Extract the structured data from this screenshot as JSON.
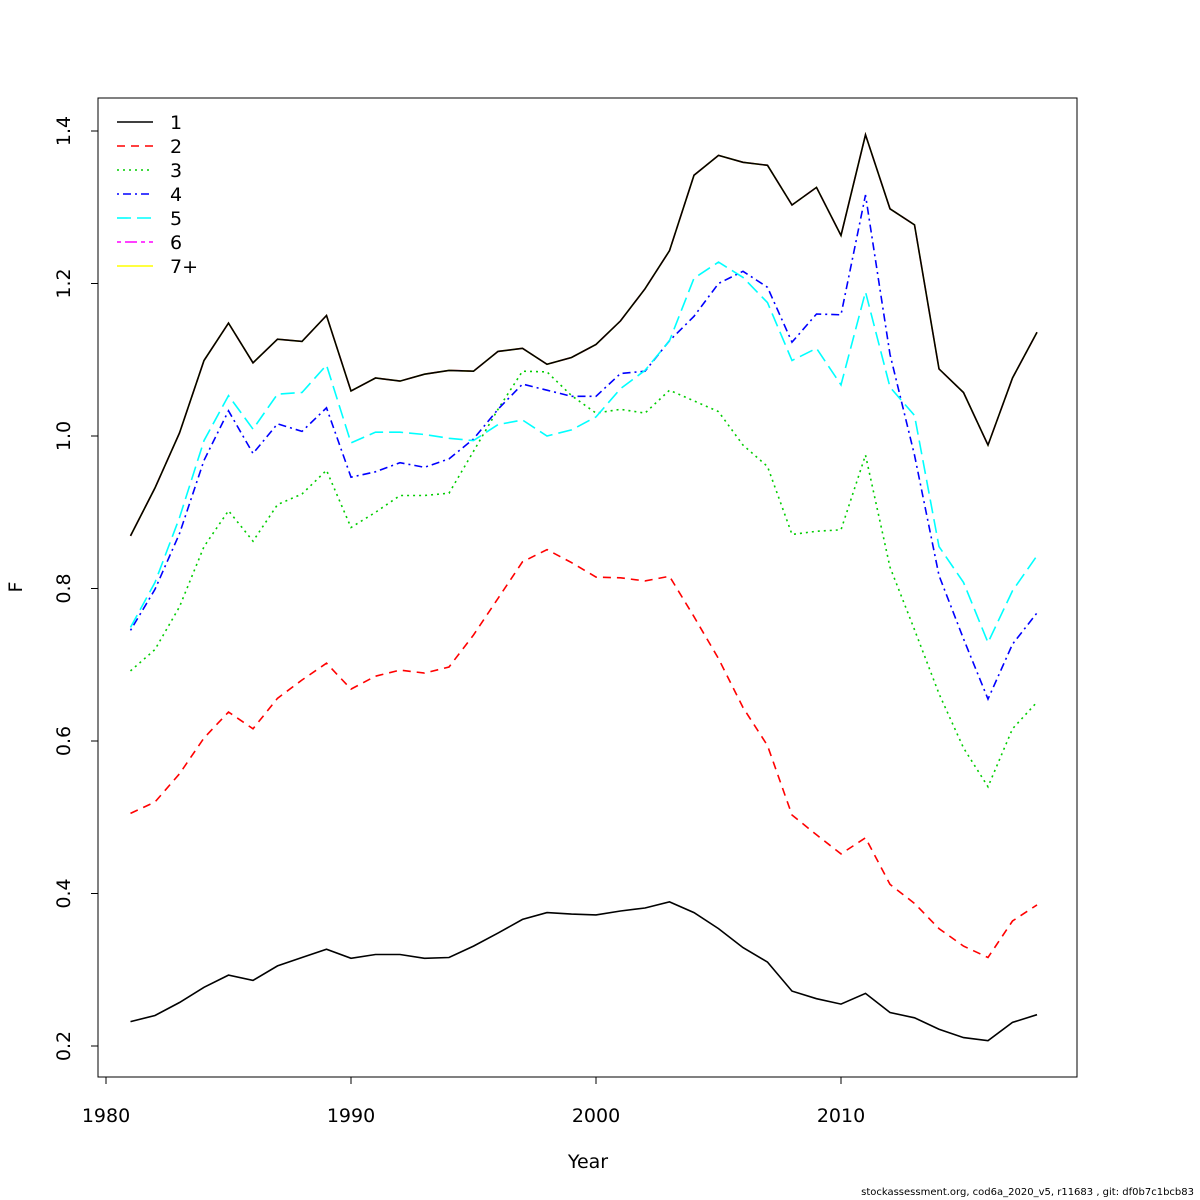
{
  "chart_data": {
    "type": "line",
    "title": "",
    "xlabel": "Year",
    "ylabel": "F",
    "xlim": [
      1980,
      2019
    ],
    "ylim": [
      0.18,
      1.42
    ],
    "x_ticks": [
      1980,
      1990,
      2000,
      2010
    ],
    "y_ticks": [
      0.2,
      0.4,
      0.6,
      0.8,
      1.0,
      1.2,
      1.4
    ],
    "y_tick_labels": [
      "0.2",
      "0.4",
      "0.6",
      "0.8",
      "1.0",
      "1.2",
      "1.4"
    ],
    "legend_position": "top-left",
    "grid": false,
    "x": [
      1981,
      1982,
      1983,
      1984,
      1985,
      1986,
      1987,
      1988,
      1989,
      1990,
      1991,
      1992,
      1993,
      1994,
      1995,
      1996,
      1997,
      1998,
      1999,
      2000,
      2001,
      2002,
      2003,
      2004,
      2005,
      2006,
      2007,
      2008,
      2009,
      2010,
      2011,
      2012,
      2013,
      2014,
      2015,
      2016,
      2017,
      2018
    ],
    "series": [
      {
        "name": "1",
        "color": "#000000",
        "dash": "solid",
        "values": [
          0.232,
          0.24,
          0.257,
          0.277,
          0.293,
          0.286,
          0.305,
          0.316,
          0.327,
          0.315,
          0.32,
          0.32,
          0.315,
          0.316,
          0.331,
          0.348,
          0.366,
          0.375,
          0.373,
          0.372,
          0.377,
          0.381,
          0.389,
          0.375,
          0.354,
          0.329,
          0.31,
          0.272,
          0.262,
          0.255,
          0.269,
          0.244,
          0.237,
          0.222,
          0.211,
          0.207,
          0.231,
          0.241
        ]
      },
      {
        "name": "2",
        "color": "#ff0000",
        "dash": "dashed",
        "values": [
          0.505,
          0.52,
          0.557,
          0.604,
          0.638,
          0.616,
          0.656,
          0.68,
          0.702,
          0.668,
          0.685,
          0.693,
          0.689,
          0.697,
          0.739,
          0.787,
          0.835,
          0.851,
          0.834,
          0.815,
          0.814,
          0.81,
          0.816,
          0.763,
          0.708,
          0.644,
          0.594,
          0.503,
          0.477,
          0.452,
          0.473,
          0.412,
          0.387,
          0.354,
          0.331,
          0.316,
          0.364,
          0.385
        ]
      },
      {
        "name": "3",
        "color": "#00cd00",
        "dash": "dotted",
        "values": [
          0.692,
          0.72,
          0.776,
          0.855,
          0.902,
          0.862,
          0.91,
          0.924,
          0.955,
          0.88,
          0.9,
          0.922,
          0.922,
          0.925,
          0.98,
          1.035,
          1.085,
          1.084,
          1.053,
          1.03,
          1.035,
          1.03,
          1.06,
          1.046,
          1.032,
          0.988,
          0.96,
          0.871,
          0.875,
          0.877,
          0.975,
          0.828,
          0.746,
          0.662,
          0.591,
          0.54,
          0.616,
          0.651
        ]
      },
      {
        "name": "4",
        "color": "#0000ff",
        "dash": "dotdash",
        "values": [
          0.745,
          0.799,
          0.872,
          0.968,
          1.033,
          0.977,
          1.016,
          1.006,
          1.037,
          0.946,
          0.953,
          0.965,
          0.959,
          0.97,
          0.996,
          1.035,
          1.068,
          1.06,
          1.052,
          1.052,
          1.082,
          1.085,
          1.125,
          1.157,
          1.2,
          1.216,
          1.195,
          1.123,
          1.16,
          1.159,
          1.316,
          1.107,
          0.975,
          0.817,
          0.734,
          0.655,
          0.727,
          0.768
        ]
      },
      {
        "name": "5",
        "color": "#00ffff",
        "dash": "longdash",
        "values": [
          0.749,
          0.808,
          0.893,
          0.994,
          1.053,
          1.009,
          1.055,
          1.057,
          1.093,
          0.991,
          1.005,
          1.005,
          1.002,
          0.997,
          0.994,
          1.015,
          1.021,
          1.0,
          1.008,
          1.025,
          1.062,
          1.086,
          1.125,
          1.207,
          1.228,
          1.208,
          1.175,
          1.099,
          1.115,
          1.067,
          1.189,
          1.064,
          1.027,
          0.855,
          0.808,
          0.729,
          0.797,
          0.843
        ]
      },
      {
        "name": "6",
        "color": "#ff00ff",
        "dash": "twodash",
        "values": [
          0.869,
          0.932,
          1.004,
          1.099,
          1.148,
          1.096,
          1.127,
          1.124,
          1.158,
          1.059,
          1.076,
          1.072,
          1.081,
          1.086,
          1.085,
          1.111,
          1.115,
          1.094,
          1.103,
          1.12,
          1.151,
          1.193,
          1.243,
          1.342,
          1.368,
          1.359,
          1.355,
          1.303,
          1.326,
          1.263,
          1.395,
          1.298,
          1.277,
          1.088,
          1.057,
          0.988,
          1.076,
          1.136
        ]
      },
      {
        "name": "7+",
        "color": "#ffff00",
        "dash": "solid",
        "values": [
          0.869,
          0.932,
          1.004,
          1.099,
          1.148,
          1.096,
          1.127,
          1.124,
          1.158,
          1.059,
          1.076,
          1.072,
          1.081,
          1.086,
          1.085,
          1.111,
          1.115,
          1.094,
          1.103,
          1.12,
          1.151,
          1.193,
          1.243,
          1.342,
          1.368,
          1.359,
          1.355,
          1.303,
          1.326,
          1.263,
          1.395,
          1.298,
          1.277,
          1.088,
          1.057,
          0.988,
          1.076,
          1.136
        ]
      }
    ],
    "overlay": {
      "name": "1",
      "color": "#000000",
      "dash": "solid",
      "values": [
        0.869,
        0.932,
        1.004,
        1.099,
        1.148,
        1.096,
        1.127,
        1.124,
        1.158,
        1.059,
        1.076,
        1.072,
        1.081,
        1.086,
        1.085,
        1.111,
        1.115,
        1.094,
        1.103,
        1.12,
        1.151,
        1.193,
        1.243,
        1.342,
        1.368,
        1.359,
        1.355,
        1.303,
        1.326,
        1.263,
        1.395,
        1.298,
        1.277,
        1.088,
        1.057,
        0.988,
        1.076,
        1.136
      ]
    }
  },
  "footer": "stockassessment.org, cod6a_2020_v5, r11683 , git: df0b7c1bcb83"
}
